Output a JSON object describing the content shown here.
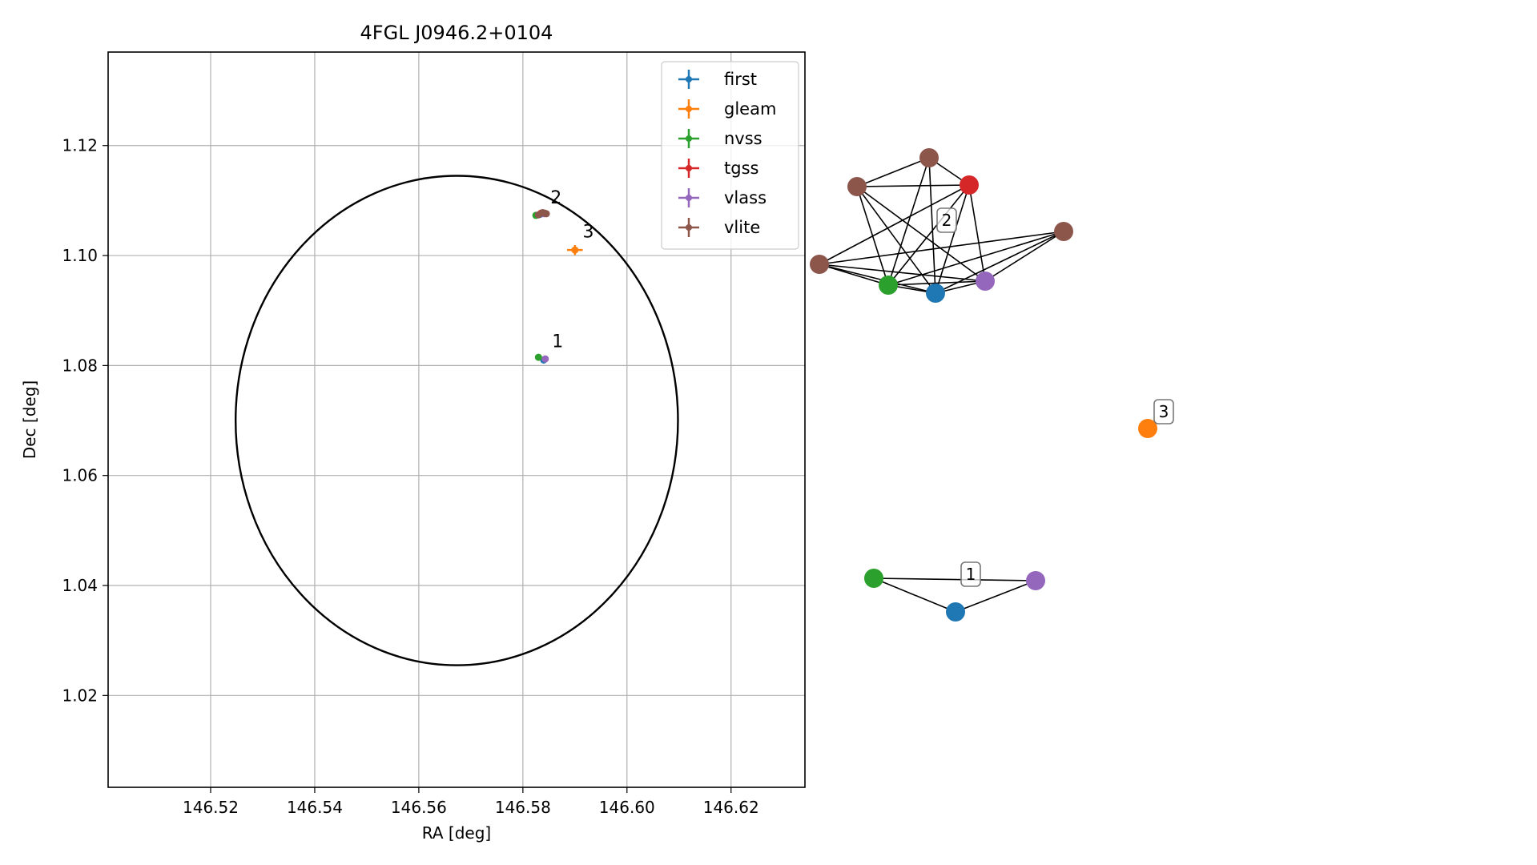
{
  "chart_data": [
    {
      "type": "scatter",
      "title": "4FGL J0946.2+0104",
      "xlabel": "RA [deg]",
      "ylabel": "Dec [deg]",
      "xlim": [
        146.5003,
        146.6342
      ],
      "ylim": [
        1.0033,
        1.137
      ],
      "xticks": [
        "146.52",
        "146.54",
        "146.56",
        "146.58",
        "146.60",
        "146.62"
      ],
      "yticks": [
        "1.02",
        "1.04",
        "1.06",
        "1.08",
        "1.10",
        "1.12"
      ],
      "grid": true,
      "legend_position": "top-right",
      "colors": {
        "first": "#1f77b4",
        "gleam": "#ff7f0e",
        "nvss": "#2ca02c",
        "tgss": "#d62728",
        "vlass": "#9467bd",
        "vlite": "#8c564b"
      },
      "series": [
        {
          "name": "first",
          "points": [
            [
              146.584,
              1.081
            ],
            [
              146.5833,
              1.1075
            ]
          ]
        },
        {
          "name": "gleam",
          "points": [
            [
              146.59,
              1.101
            ]
          ],
          "xerr": 0.0015,
          "yerr": 0.0009
        },
        {
          "name": "nvss",
          "points": [
            [
              146.583,
              1.0815
            ],
            [
              146.5825,
              1.1073
            ]
          ]
        },
        {
          "name": "tgss",
          "points": [
            [
              146.5835,
              1.1077
            ]
          ]
        },
        {
          "name": "vlass",
          "points": [
            [
              146.5843,
              1.0812
            ],
            [
              146.584,
              1.1076
            ]
          ]
        },
        {
          "name": "vlite",
          "points": [
            [
              146.5838,
              1.1078
            ],
            [
              146.5845,
              1.1076
            ],
            [
              146.583,
              1.1074
            ],
            [
              146.5842,
              1.1077
            ]
          ]
        }
      ],
      "ellipse": {
        "center": [
          146.5673,
          1.07
        ],
        "ra_radius": 0.0425,
        "dec_radius": 0.0445
      },
      "annotations": [
        {
          "text": "1",
          "x": 146.5856,
          "y": 1.0833
        },
        {
          "text": "2",
          "x": 146.5853,
          "y": 1.1095
        },
        {
          "text": "3",
          "x": 146.5915,
          "y": 1.1033
        }
      ]
    },
    {
      "type": "network",
      "clusters": [
        {
          "label": "2",
          "nodes": [
            {
              "catalog": "vlite"
            },
            {
              "catalog": "vlite"
            },
            {
              "catalog": "tgss"
            },
            {
              "catalog": "vlite"
            },
            {
              "catalog": "vlite"
            },
            {
              "catalog": "nvss"
            },
            {
              "catalog": "first"
            },
            {
              "catalog": "vlass"
            }
          ],
          "edges": [
            [
              0,
              1
            ],
            [
              0,
              2
            ],
            [
              1,
              2
            ],
            [
              1,
              5
            ],
            [
              1,
              6
            ],
            [
              1,
              7
            ],
            [
              0,
              5
            ],
            [
              0,
              6
            ],
            [
              2,
              4
            ],
            [
              2,
              5
            ],
            [
              2,
              6
            ],
            [
              2,
              7
            ],
            [
              3,
              5
            ],
            [
              3,
              6
            ],
            [
              3,
              7
            ],
            [
              4,
              5
            ],
            [
              4,
              6
            ],
            [
              4,
              7
            ],
            [
              5,
              6
            ],
            [
              6,
              7
            ],
            [
              5,
              7
            ],
            [
              3,
              4
            ]
          ]
        },
        {
          "label": "1",
          "nodes": [
            {
              "catalog": "nvss"
            },
            {
              "catalog": "vlass"
            },
            {
              "catalog": "first"
            }
          ],
          "edges": [
            [
              0,
              1
            ],
            [
              0,
              2
            ],
            [
              1,
              2
            ]
          ]
        },
        {
          "label": "3",
          "nodes": [
            {
              "catalog": "gleam"
            }
          ],
          "edges": []
        }
      ]
    }
  ]
}
